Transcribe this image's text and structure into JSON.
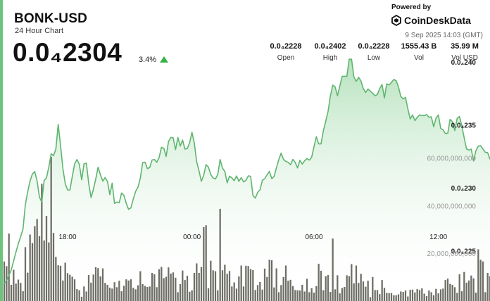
{
  "header": {
    "title": "BONK-USD",
    "subtitle": "24 Hour Chart",
    "price": "0.0₄2304",
    "change": "3.4%"
  },
  "brand": {
    "powered_by": "Powered by",
    "name": "CoinDeskData",
    "timestamp": "9 Sep 2025 14:03 (GMT)"
  },
  "stats": [
    {
      "label": "Open",
      "value": "0.0₄2228"
    },
    {
      "label": "High",
      "value": "0.0₄2402"
    },
    {
      "label": "Low",
      "value": "0.0₄2228"
    },
    {
      "label": "Vol",
      "value": "1555.43 B"
    },
    {
      "label": "Vol USD",
      "value": "35.99 M"
    }
  ],
  "colors": {
    "accent": "#6cc47c",
    "line": "#5fb56f",
    "area_top": "#b6e2bd",
    "bars": "#6e6e66",
    "up_arrow": "#35b24a"
  },
  "chart_data": {
    "type": "line",
    "grid": false,
    "x_tick_labels": [
      "18:00",
      "00:00",
      "06:00",
      "12:00"
    ],
    "x_tick_index": [
      27,
      80,
      132,
      185
    ],
    "price_axis": {
      "side": "right",
      "unit_scale": 0.0001,
      "ticks": [
        {
          "label": "0.0₄225",
          "value": 2.25e-05
        },
        {
          "label": "0.0₄230",
          "value": 2.3e-05
        },
        {
          "label": "0.0₄235",
          "value": 2.35e-05
        },
        {
          "label": "0.0₄240",
          "value": 2.4e-05
        }
      ],
      "range": [
        2.21e-05,
        2.41e-05
      ]
    },
    "volume_axis": {
      "side": "right",
      "ticks": [
        {
          "label": "20,000,000,000",
          "value": 20000000000
        },
        {
          "label": "40,000,000,000",
          "value": 40000000000
        },
        {
          "label": "60,000,000,000",
          "value": 60000000000
        }
      ],
      "range": [
        0,
        85000000000
      ]
    },
    "price_series": {
      "name": "BONK-USD",
      "values_e4": [
        0.22237,
        0.22262,
        0.22303,
        0.22347,
        0.22418,
        0.22489,
        0.22555,
        0.22611,
        0.22672,
        0.22865,
        0.22967,
        0.23053,
        0.23109,
        0.23128,
        0.23053,
        0.22926,
        0.22885,
        0.23057,
        0.23078,
        0.23163,
        0.23269,
        0.23254,
        0.23306,
        0.23503,
        0.23336,
        0.23152,
        0.23032,
        0.22982,
        0.22982,
        0.23089,
        0.23189,
        0.23224,
        0.23185,
        0.23063,
        0.23189,
        0.23195,
        0.23034,
        0.22922,
        0.22987,
        0.23069,
        0.23163,
        0.23103,
        0.23052,
        0.2308,
        0.23049,
        0.22944,
        0.23036,
        0.22875,
        0.22886,
        0.2288,
        0.22958,
        0.2294,
        0.22876,
        0.22828,
        0.2284,
        0.22911,
        0.22971,
        0.23005,
        0.23076,
        0.232,
        0.23203,
        0.23151,
        0.23161,
        0.2322,
        0.23224,
        0.23201,
        0.2324,
        0.23321,
        0.23314,
        0.23248,
        0.23367,
        0.234,
        0.23396,
        0.23303,
        0.23399,
        0.23331,
        0.23379,
        0.23307,
        0.23311,
        0.23357,
        0.2344,
        0.23355,
        0.23207,
        0.23134,
        0.23051,
        0.23099,
        0.23183,
        0.23164,
        0.23105,
        0.23077,
        0.2307,
        0.23104,
        0.23224,
        0.23156,
        0.23129,
        0.23039,
        0.23092,
        0.23078,
        0.23056,
        0.23093,
        0.23051,
        0.2308,
        0.23046,
        0.23059,
        0.23094,
        0.23091,
        0.22937,
        0.22918,
        0.22963,
        0.22984,
        0.23059,
        0.23072,
        0.23102,
        0.2313,
        0.23072,
        0.23089,
        0.23159,
        0.23223,
        0.23275,
        0.23225,
        0.23209,
        0.23201,
        0.23183,
        0.23225,
        0.23201,
        0.23157,
        0.23218,
        0.23188,
        0.23214,
        0.23232,
        0.23219,
        0.23242,
        0.23325,
        0.23405,
        0.23348,
        0.23348,
        0.23453,
        0.23527,
        0.23607,
        0.23731,
        0.23815,
        0.23801,
        0.23731,
        0.23807,
        0.23885,
        0.23885,
        0.23885,
        0.24021,
        0.24021,
        0.2388,
        0.23845,
        0.23877,
        0.23849,
        0.23788,
        0.23756,
        0.23784,
        0.23768,
        0.2375,
        0.23731,
        0.2374,
        0.23788,
        0.2382,
        0.23713,
        0.23825,
        0.23816,
        0.23836,
        0.2386,
        0.2385,
        0.238,
        0.23725,
        0.23705,
        0.23718,
        0.23626,
        0.23546,
        0.23578,
        0.23533,
        0.23559,
        0.23579,
        0.23573,
        0.23573,
        0.23581,
        0.2356,
        0.23563,
        0.23484,
        0.23553,
        0.23578,
        0.23471,
        0.2346,
        0.2343,
        0.23433,
        0.23543,
        0.23524,
        0.23454,
        0.23551,
        0.23566,
        0.23491,
        0.23396,
        0.23308,
        0.23299,
        0.23306,
        0.23212,
        0.23295,
        0.2333,
        0.23334,
        0.23307,
        0.23281,
        0.23279,
        0.23225
      ]
    },
    "volume_series": {
      "name": "Volume",
      "values_billion": [
        16.6,
        14.6,
        28.3,
        6.8,
        13.1,
        7.3,
        9.0,
        7.6,
        4.1,
        22.6,
        11.9,
        27.9,
        24.3,
        31.4,
        34.4,
        27.2,
        49.2,
        25.4,
        35.7,
        24.6,
        60.5,
        28.6,
        18.5,
        15.0,
        14.8,
        8.6,
        16.1,
        11.7,
        11.0,
        10.2,
        9.1,
        5.0,
        4.5,
        1.8,
        6.1,
        4.0,
        10.9,
        7.7,
        11.1,
        14.2,
        13.8,
        10.3,
        13.7,
        7.6,
        6.8,
        5.6,
        5.2,
        7.9,
        5.8,
        8.5,
        4.1,
        6.4,
        9.1,
        8.6,
        9.1,
        5.5,
        4.9,
        6.6,
        12.5,
        7.1,
        6.3,
        5.9,
        6.1,
        11.8,
        11.2,
        5.8,
        13.3,
        14.3,
        9.6,
        10.2,
        14.1,
        11.5,
        12.0,
        9.8,
        3.7,
        7.1,
        12.8,
        8.8,
        10.6,
        3.9,
        4.5,
        11.8,
        15.8,
        11.8,
        14.2,
        31.0,
        31.8,
        5.3,
        16.9,
        12.9,
        12.5,
        4.5,
        38.7,
        12.9,
        15.2,
        11.4,
        12.6,
        6.1,
        7.8,
        5.2,
        10.3,
        14.9,
        6.1,
        14.8,
        14.7,
        13.4,
        13.0,
        4.6,
        6.7,
        8.0,
        4.8,
        13.6,
        10.1,
        17.3,
        17.1,
        5.7,
        13.7,
        3.7,
        6.7,
        10.1,
        14.9,
        8.5,
        8.9,
        6.2,
        4.6,
        4.5,
        4.4,
        6.8,
        4.0,
        9.3,
        3.7,
        5.4,
        3.5,
        6.2,
        15.6,
        12.7,
        4.5,
        10.4,
        10.9,
        3.8,
        26.2,
        4.9,
        10.8,
        3.2,
        5.4,
        5.9,
        10.8,
        10.4,
        15.5,
        7.4,
        14.9,
        7.6,
        11.4,
        8.2,
        6.0,
        8.5,
        1.6,
        10.1,
        4.6,
        4.6,
        2.9,
        8.8,
        5.5,
        3.4,
        3.3,
        3.3,
        2.4,
        2.4,
        2.8,
        4.0,
        3.8,
        4.4,
        1.9,
        4.7,
        4.8,
        3.6,
        5.0,
        4.6,
        5.3,
        3.1,
        2.1,
        4.4,
        3.7,
        2.4,
        5.1,
        3.2,
        4.9,
        5.2,
        8.8,
        9.4,
        7.2,
        6.8,
        5.8,
        3.4,
        11.2,
        4.1,
        12.2,
        7.7,
        8.6,
        10.7,
        9.5,
        3.5,
        21.7,
        17.3,
        16.6,
        3.7,
        11.8,
        10.4,
        9.9,
        11.6,
        3.8,
        3.3,
        9.7
      ]
    }
  }
}
